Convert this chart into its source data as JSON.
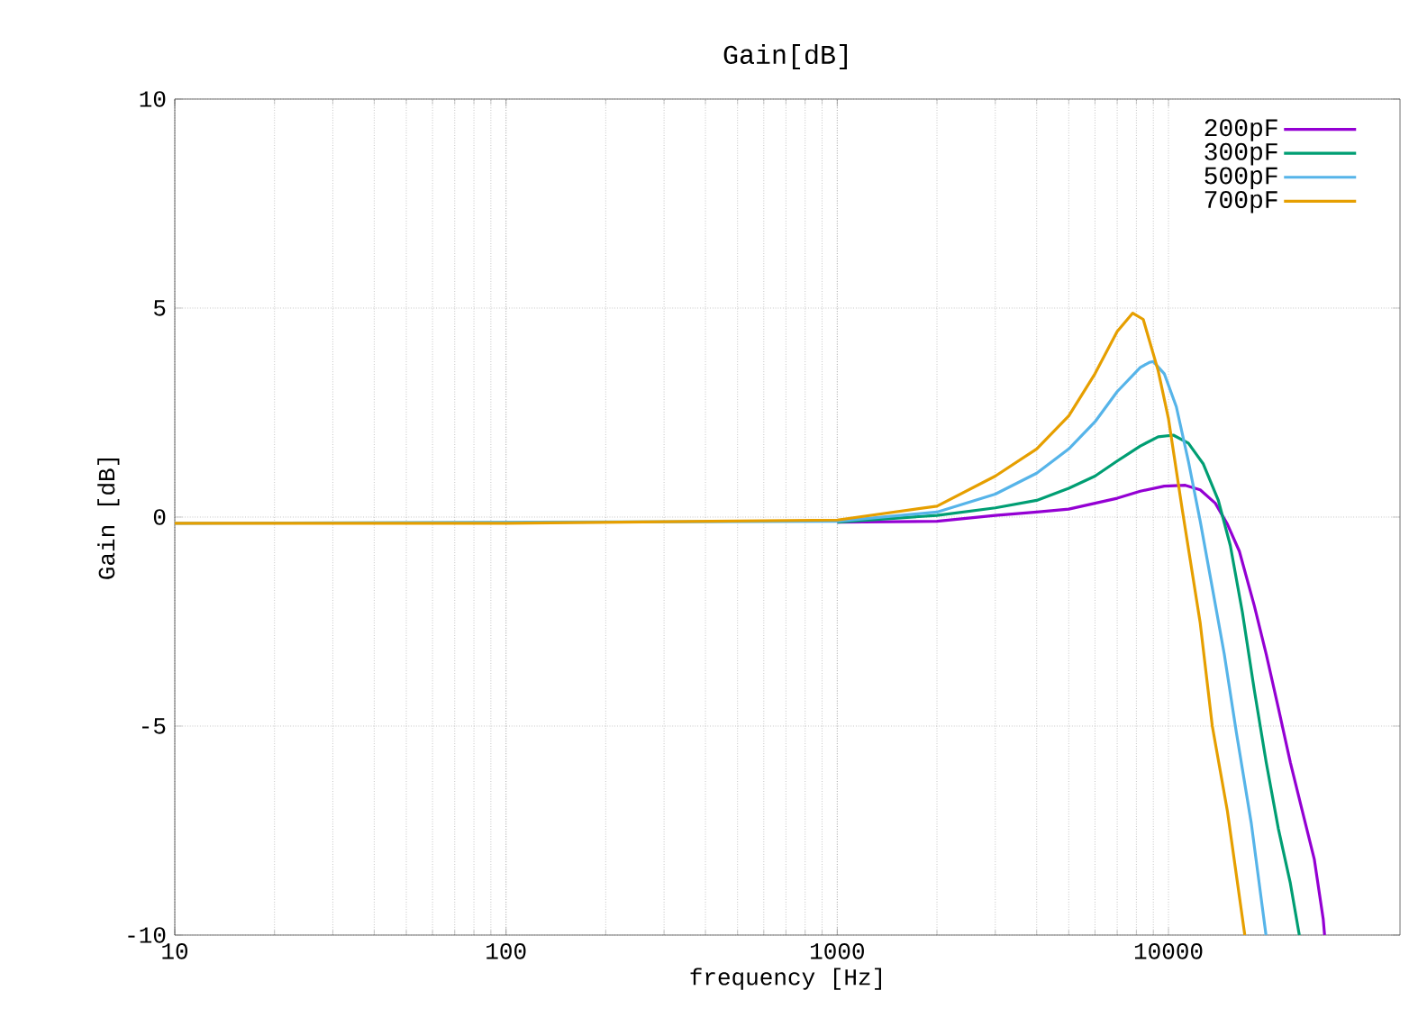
{
  "chart_data": {
    "type": "line",
    "title": "Gain[dB]",
    "xlabel": "frequency [Hz]",
    "ylabel": "Gain [dB]",
    "log": "x",
    "xlim": [
      10,
      50000
    ],
    "ylim": [
      -10,
      10
    ],
    "xticks": [
      10,
      100,
      1000,
      10000
    ],
    "yticks": [
      -10,
      -5,
      0,
      5,
      10
    ],
    "grid": true,
    "legend": "top right",
    "line_style": "solid",
    "marker": "none",
    "series": [
      {
        "name": "200pF",
        "color": "#9400d3",
        "x": [
          1000,
          2000,
          3000,
          4000,
          5000,
          6000,
          7000,
          8220,
          9710,
          11240,
          12470,
          13850,
          15060,
          16370,
          18160,
          19730,
          21470,
          23330,
          25350,
          27550,
          29320,
          29600
        ],
        "values": [
          -0.12,
          -0.1,
          0.04,
          0.12,
          0.19,
          0.33,
          0.45,
          0.62,
          0.74,
          0.76,
          0.65,
          0.33,
          -0.17,
          -0.82,
          -2.12,
          -3.28,
          -4.57,
          -5.87,
          -7.03,
          -8.18,
          -9.62,
          -10
        ]
      },
      {
        "name": "300pF",
        "color": "#009e73",
        "x": [
          1000,
          2000,
          3000,
          4000,
          5000,
          6000,
          7000,
          8220,
          9310,
          10340,
          11480,
          12740,
          14140,
          15370,
          16710,
          18160,
          19730,
          21470,
          23330,
          24830
        ],
        "values": [
          -0.12,
          0.04,
          0.22,
          0.4,
          0.69,
          0.98,
          1.34,
          1.7,
          1.92,
          1.96,
          1.77,
          1.27,
          0.4,
          -0.68,
          -2.27,
          -4.14,
          -5.87,
          -7.46,
          -8.76,
          -10
        ]
      },
      {
        "name": "500pF",
        "color": "#56b4e9",
        "x": [
          10,
          1000,
          2000,
          3000,
          4000,
          5000,
          6000,
          7000,
          8220,
          8750,
          9000,
          9710,
          10560,
          11480,
          12470,
          13560,
          14740,
          16030,
          17780,
          19700
        ],
        "values": [
          -0.15,
          -0.1,
          0.12,
          0.55,
          1.05,
          1.63,
          2.28,
          3.0,
          3.58,
          3.7,
          3.72,
          3.43,
          2.64,
          1.34,
          -0.1,
          -1.69,
          -3.28,
          -5.15,
          -7.32,
          -10
        ]
      },
      {
        "name": "700pF",
        "color": "#e69f00",
        "x": [
          10,
          100,
          1000,
          2000,
          3000,
          4000,
          5000,
          6000,
          7000,
          7800,
          8390,
          9310,
          10000,
          11000,
          12470,
          13560,
          15060,
          17000
        ],
        "values": [
          -0.15,
          -0.15,
          -0.07,
          0.26,
          0.98,
          1.63,
          2.42,
          3.43,
          4.44,
          4.88,
          4.73,
          3.5,
          2.35,
          0.19,
          -2.54,
          -5.0,
          -7.03,
          -10
        ]
      }
    ]
  }
}
